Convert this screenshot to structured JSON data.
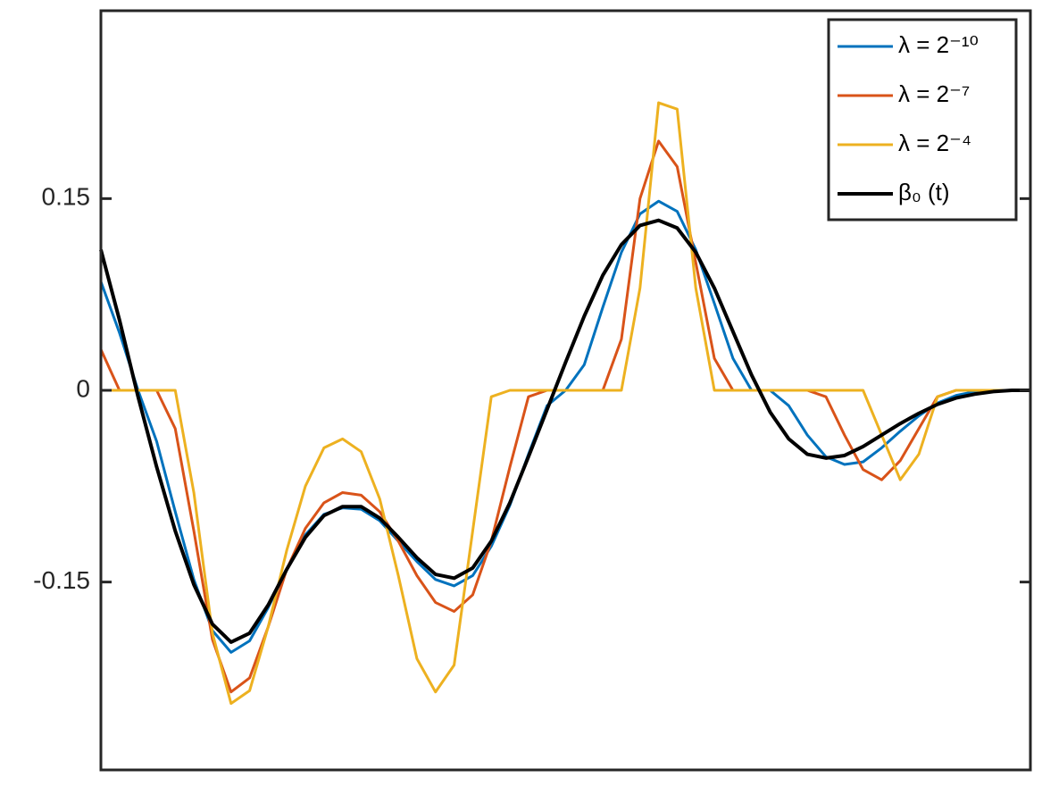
{
  "chart_data": {
    "type": "line",
    "x": [
      0,
      2,
      4,
      6,
      8,
      10,
      12,
      14,
      16,
      18,
      20,
      22,
      24,
      26,
      28,
      30,
      32,
      34,
      36,
      38,
      40,
      42,
      44,
      46,
      48,
      50,
      52,
      54,
      56,
      58,
      60,
      62,
      64,
      66,
      68,
      70,
      72,
      74,
      76,
      78,
      80,
      82,
      84,
      86,
      88,
      90,
      92,
      94,
      96,
      98,
      100
    ],
    "xlim": [
      0,
      100
    ],
    "ylim": [
      -0.297,
      0.297
    ],
    "yticks": [
      -0.15,
      0,
      0.15
    ],
    "legend": "upper right",
    "series": [
      {
        "name": "λ = 2⁻¹⁰",
        "color": "#0072bd",
        "width": 3,
        "values": [
          0.085,
          0.045,
          0,
          -0.04,
          -0.095,
          -0.148,
          -0.188,
          -0.205,
          -0.196,
          -0.17,
          -0.14,
          -0.113,
          -0.097,
          -0.092,
          -0.093,
          -0.102,
          -0.118,
          -0.134,
          -0.148,
          -0.153,
          -0.145,
          -0.122,
          -0.09,
          -0.05,
          -0.012,
          0,
          0.02,
          0.065,
          0.108,
          0.138,
          0.148,
          0.14,
          0.11,
          0.068,
          0.025,
          0,
          0,
          -0.012,
          -0.035,
          -0.052,
          -0.058,
          -0.056,
          -0.045,
          -0.032,
          -0.02,
          -0.01,
          -0.004,
          -0.001,
          0,
          0,
          0
        ]
      },
      {
        "name": "λ = 2⁻⁷",
        "color": "#d95319",
        "width": 3,
        "values": [
          0.032,
          0,
          0,
          0,
          -0.03,
          -0.11,
          -0.195,
          -0.236,
          -0.225,
          -0.185,
          -0.14,
          -0.108,
          -0.088,
          -0.08,
          -0.082,
          -0.095,
          -0.118,
          -0.145,
          -0.166,
          -0.173,
          -0.16,
          -0.118,
          -0.06,
          -0.005,
          0,
          0,
          0,
          0,
          0.04,
          0.15,
          0.195,
          0.175,
          0.1,
          0.025,
          0,
          0,
          0,
          0,
          0,
          -0.005,
          -0.035,
          -0.062,
          -0.07,
          -0.055,
          -0.03,
          -0.005,
          0,
          0,
          0,
          0,
          0
        ]
      },
      {
        "name": "λ = 2⁻⁴",
        "color": "#edb120",
        "width": 3,
        "values": [
          0,
          0,
          0,
          0,
          0,
          -0.08,
          -0.19,
          -0.245,
          -0.235,
          -0.185,
          -0.125,
          -0.075,
          -0.045,
          -0.038,
          -0.048,
          -0.085,
          -0.145,
          -0.21,
          -0.236,
          -0.215,
          -0.11,
          -0.005,
          0,
          0,
          0,
          0,
          0,
          0,
          0,
          0.08,
          0.225,
          0.22,
          0.08,
          0,
          0,
          0,
          0,
          0,
          0,
          0,
          0,
          0,
          -0.035,
          -0.07,
          -0.05,
          -0.005,
          0,
          0,
          0,
          0,
          0
        ]
      },
      {
        "name": "β₀ (t)",
        "color": "#000000",
        "width": 4,
        "values": [
          0.11,
          0.055,
          -0.005,
          -0.06,
          -0.11,
          -0.152,
          -0.183,
          -0.197,
          -0.19,
          -0.168,
          -0.14,
          -0.115,
          -0.098,
          -0.091,
          -0.091,
          -0.1,
          -0.115,
          -0.131,
          -0.144,
          -0.147,
          -0.139,
          -0.118,
          -0.088,
          -0.052,
          -0.015,
          0.022,
          0.058,
          0.09,
          0.114,
          0.129,
          0.133,
          0.127,
          0.108,
          0.08,
          0.046,
          0.012,
          -0.017,
          -0.038,
          -0.05,
          -0.053,
          -0.051,
          -0.044,
          -0.035,
          -0.026,
          -0.018,
          -0.011,
          -0.006,
          -0.003,
          -0.001,
          0,
          0
        ]
      }
    ]
  }
}
